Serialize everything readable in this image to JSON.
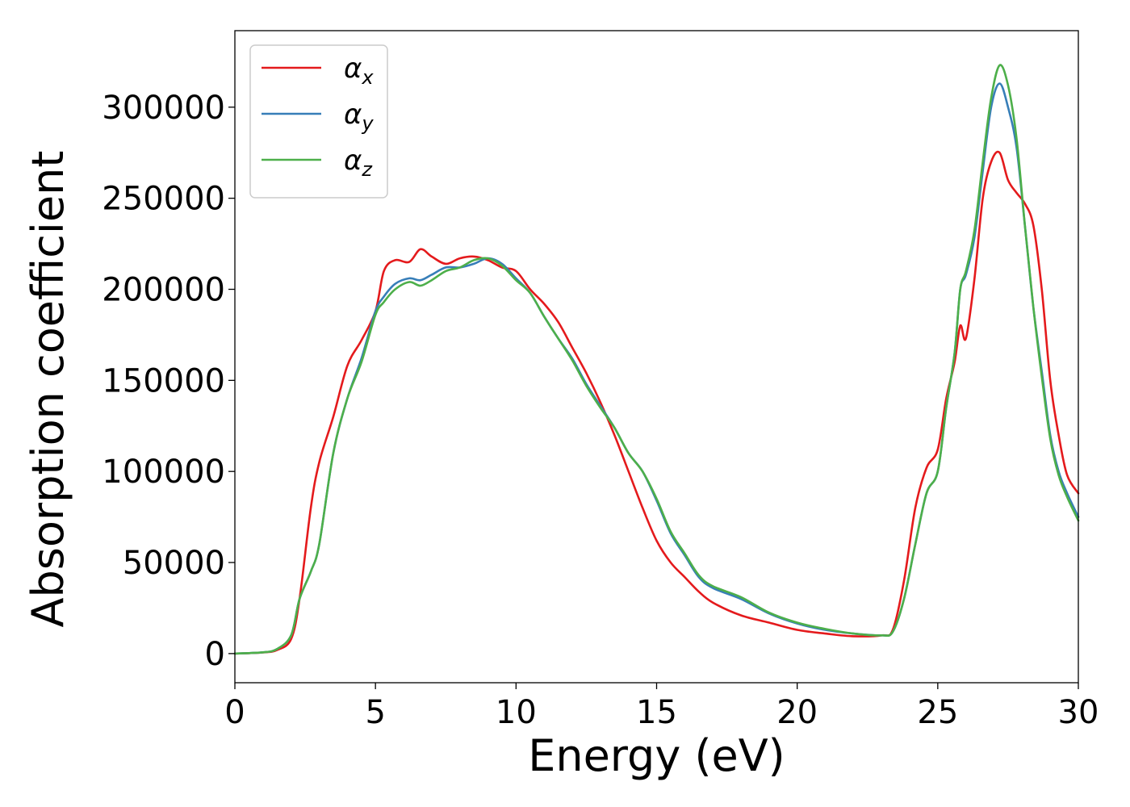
{
  "chart_data": {
    "type": "line",
    "title": "",
    "xlabel": "Energy (eV)",
    "ylabel": "Absorption coefficient",
    "xlim": [
      0,
      30
    ],
    "ylim": [
      -16000,
      342000
    ],
    "xticks": [
      0,
      5,
      10,
      15,
      20,
      25,
      30
    ],
    "yticks": [
      0,
      50000,
      100000,
      150000,
      200000,
      250000,
      300000
    ],
    "grid": false,
    "legend_position": "top-left",
    "series": [
      {
        "name": "α",
        "subscript": "x",
        "color": "#e41a1c",
        "x": [
          0,
          1,
          1.5,
          2,
          2.3,
          2.7,
          3,
          3.5,
          4,
          4.5,
          5,
          5.3,
          5.7,
          6.2,
          6.6,
          7,
          7.5,
          8,
          8.5,
          9,
          9.5,
          10,
          10.5,
          11,
          11.5,
          12,
          12.5,
          13,
          13.5,
          14,
          14.5,
          15,
          15.5,
          16,
          16.5,
          17,
          18,
          19,
          20,
          21,
          22,
          23,
          23.4,
          23.8,
          24.2,
          24.6,
          25,
          25.3,
          25.6,
          25.8,
          26,
          26.3,
          26.6,
          26.9,
          27.2,
          27.5,
          27.8,
          28.1,
          28.4,
          28.7,
          29,
          29.3,
          29.6,
          30
        ],
        "y": [
          0,
          600,
          2000,
          8000,
          30000,
          80000,
          105000,
          130000,
          158000,
          172000,
          188000,
          210000,
          216000,
          215000,
          222000,
          218000,
          214000,
          217000,
          218000,
          216000,
          212000,
          210000,
          200000,
          192000,
          182000,
          168000,
          154000,
          138000,
          120000,
          100000,
          80000,
          62000,
          50000,
          42000,
          34000,
          28000,
          21000,
          17000,
          13000,
          11000,
          9500,
          10000,
          13000,
          40000,
          80000,
          102000,
          112000,
          140000,
          160000,
          180000,
          173000,
          205000,
          250000,
          270000,
          275000,
          260000,
          253000,
          247000,
          235000,
          200000,
          150000,
          120000,
          98000,
          88000
        ]
      },
      {
        "name": "α",
        "subscript": "y",
        "color": "#377eb8",
        "x": [
          0,
          1,
          1.5,
          2,
          2.3,
          2.7,
          3,
          3.5,
          4,
          4.5,
          5,
          5.3,
          5.7,
          6.2,
          6.6,
          7,
          7.5,
          8,
          8.5,
          9,
          9.5,
          10,
          10.5,
          11,
          11.5,
          12,
          12.5,
          13,
          13.5,
          14,
          14.5,
          15,
          15.5,
          16,
          16.5,
          17,
          18,
          19,
          20,
          21,
          22,
          23,
          23.4,
          23.8,
          24.2,
          24.6,
          25,
          25.3,
          25.6,
          25.8,
          26,
          26.3,
          26.6,
          26.9,
          27.2,
          27.5,
          27.8,
          28.1,
          28.4,
          28.7,
          29,
          29.3,
          29.6,
          30
        ],
        "y": [
          0,
          700,
          2500,
          10000,
          30000,
          45000,
          60000,
          110000,
          140000,
          162000,
          188000,
          196000,
          203000,
          206000,
          205000,
          208000,
          212000,
          212000,
          214000,
          217000,
          214000,
          206000,
          198000,
          185000,
          173000,
          162000,
          148000,
          136000,
          124000,
          110000,
          100000,
          84000,
          66000,
          54000,
          42000,
          36000,
          30000,
          22000,
          16500,
          13000,
          11000,
          10000,
          12000,
          30000,
          60000,
          88000,
          100000,
          135000,
          165000,
          200000,
          208000,
          228000,
          265000,
          300000,
          313000,
          300000,
          278000,
          235000,
          190000,
          155000,
          120000,
          100000,
          88000,
          75000
        ]
      },
      {
        "name": "α",
        "subscript": "z",
        "color": "#4daf4a",
        "x": [
          0,
          1,
          1.5,
          2,
          2.3,
          2.7,
          3,
          3.5,
          4,
          4.5,
          5,
          5.3,
          5.7,
          6.2,
          6.6,
          7,
          7.5,
          8,
          8.5,
          9,
          9.5,
          10,
          10.5,
          11,
          11.5,
          12,
          12.5,
          13,
          13.5,
          14,
          14.5,
          15,
          15.5,
          16,
          16.5,
          17,
          18,
          19,
          20,
          21,
          22,
          23,
          23.4,
          23.8,
          24.2,
          24.6,
          25,
          25.3,
          25.6,
          25.8,
          26,
          26.3,
          26.6,
          26.9,
          27.2,
          27.5,
          27.8,
          28.1,
          28.4,
          28.7,
          29,
          29.3,
          29.6,
          30
        ],
        "y": [
          0,
          700,
          2500,
          10000,
          30000,
          45000,
          60000,
          110000,
          140000,
          160000,
          186000,
          193000,
          200000,
          204000,
          202000,
          205000,
          210000,
          212000,
          216000,
          217000,
          213000,
          205000,
          198000,
          185000,
          173000,
          161000,
          147000,
          135000,
          124000,
          110000,
          100000,
          85000,
          67000,
          55000,
          43000,
          37000,
          31000,
          22500,
          17000,
          13500,
          11000,
          10000,
          12000,
          30000,
          60000,
          88000,
          100000,
          135000,
          165000,
          200000,
          210000,
          232000,
          270000,
          305000,
          323000,
          312000,
          283000,
          235000,
          190000,
          152000,
          118000,
          98000,
          86000,
          73000
        ]
      }
    ]
  }
}
